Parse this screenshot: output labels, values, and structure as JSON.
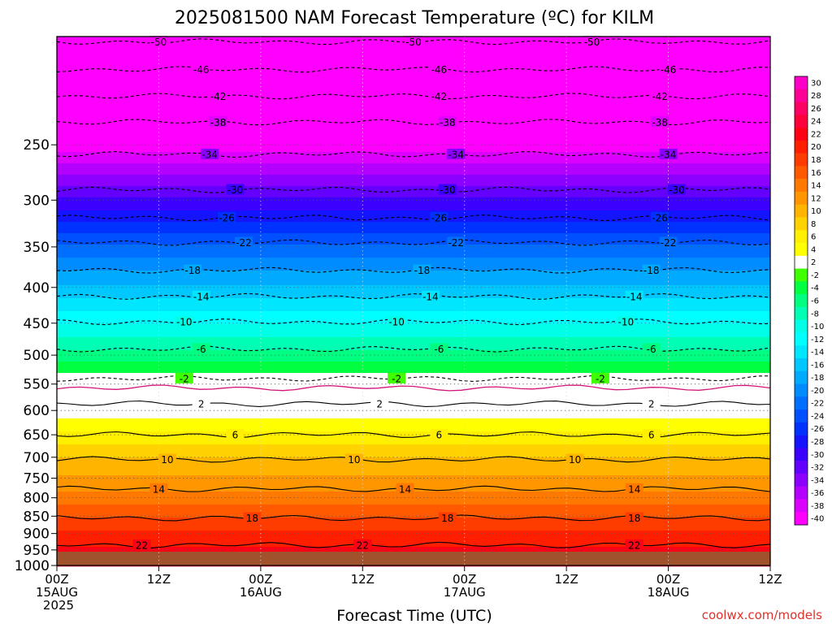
{
  "title": "2025081500 NAM Forecast Temperature (ºC) for KILM",
  "credit": "coolwx.com/models",
  "credit_color": "#e0302a",
  "chart_data": {
    "type": "heatmap",
    "title": "2025081500 NAM Forecast Temperature (ºC) for KILM",
    "xlabel": "Forecast Time (UTC)",
    "ylabel": "",
    "x_ticks": [
      {
        "hour": 0,
        "lines": [
          "00Z",
          "15AUG",
          "2025"
        ]
      },
      {
        "hour": 12,
        "lines": [
          "12Z"
        ]
      },
      {
        "hour": 24,
        "lines": [
          "00Z",
          "16AUG"
        ]
      },
      {
        "hour": 36,
        "lines": [
          "12Z"
        ]
      },
      {
        "hour": 48,
        "lines": [
          "00Z",
          "17AUG"
        ]
      },
      {
        "hour": 60,
        "lines": [
          "12Z"
        ]
      },
      {
        "hour": 72,
        "lines": [
          "00Z",
          "18AUG"
        ]
      },
      {
        "hour": 84,
        "lines": [
          "12Z"
        ]
      }
    ],
    "xlim_hours": [
      0,
      84
    ],
    "y_scale": "log-pressure",
    "y_ticks": [
      250,
      300,
      350,
      400,
      450,
      500,
      550,
      600,
      650,
      700,
      750,
      800,
      850,
      900,
      950,
      1000
    ],
    "ylim_hPa": [
      1000,
      175
    ],
    "surface_band_color": "#a0522d",
    "colorbar": {
      "levels": [
        "30",
        "28",
        "26",
        "24",
        "22",
        "20",
        "18",
        "16",
        "14",
        "12",
        "10",
        "8",
        "6",
        "4",
        "2",
        "-2",
        "-4",
        "-6",
        "-8",
        "-10",
        "-12",
        "-14",
        "-16",
        "-18",
        "-20",
        "-22",
        "-24",
        "-26",
        "-28",
        "-30",
        "-32",
        "-34",
        "-36",
        "-38",
        "-40"
      ],
      "colors": [
        "#ff00c8",
        "#ff0096",
        "#ff0064",
        "#ff003c",
        "#ff0014",
        "#ff1e00",
        "#ff3c00",
        "#ff5a00",
        "#ff7800",
        "#ff9600",
        "#ffb400",
        "#ffd200",
        "#fff000",
        "#ffff00",
        "#ffffff",
        "#40ff00",
        "#00ff40",
        "#00ff80",
        "#00ffb4",
        "#00ffe6",
        "#00ffff",
        "#00e6ff",
        "#00c8ff",
        "#00aaff",
        "#008cff",
        "#006eff",
        "#0050ff",
        "#0032ff",
        "#1414ff",
        "#3c00ff",
        "#6400ff",
        "#8c00ff",
        "#b400ff",
        "#dc00ff",
        "#ff00ff"
      ]
    },
    "temperature_profile": [
      {
        "p": 1000,
        "t": 26
      },
      {
        "p": 950,
        "t": 22.5
      },
      {
        "p": 900,
        "t": 20.5
      },
      {
        "p": 850,
        "t": 18
      },
      {
        "p": 800,
        "t": 15
      },
      {
        "p": 750,
        "t": 12.5
      },
      {
        "p": 700,
        "t": 10
      },
      {
        "p": 650,
        "t": 6.5
      },
      {
        "p": 600,
        "t": 3
      },
      {
        "p": 550,
        "t": 0
      },
      {
        "p": 500,
        "t": -5
      },
      {
        "p": 450,
        "t": -10
      },
      {
        "p": 400,
        "t": -15.5
      },
      {
        "p": 350,
        "t": -21.5
      },
      {
        "p": 300,
        "t": -29.5
      },
      {
        "p": 250,
        "t": -39
      },
      {
        "p": 200,
        "t": -49
      },
      {
        "p": 175,
        "t": -52
      }
    ],
    "contours": [
      {
        "value": -50,
        "dashed": true,
        "p": 178,
        "labels": [
          [
            12,
            "-50"
          ],
          [
            42,
            "-50"
          ],
          [
            63,
            "-50"
          ]
        ]
      },
      {
        "value": -46,
        "dashed": true,
        "p": 195,
        "labels": [
          [
            17,
            "-46"
          ],
          [
            45,
            "-46"
          ],
          [
            72,
            "-46"
          ]
        ]
      },
      {
        "value": -42,
        "dashed": true,
        "p": 213,
        "labels": [
          [
            19,
            "-42"
          ],
          [
            45,
            "-42"
          ],
          [
            71,
            "-42"
          ]
        ]
      },
      {
        "value": -38,
        "dashed": true,
        "p": 232,
        "labels": [
          [
            19,
            "-38"
          ],
          [
            46,
            "-38"
          ],
          [
            71,
            "-38"
          ]
        ]
      },
      {
        "value": -34,
        "dashed": true,
        "p": 258,
        "labels": [
          [
            18,
            "-34"
          ],
          [
            47,
            "-34"
          ],
          [
            72,
            "-34"
          ]
        ]
      },
      {
        "value": -30,
        "dashed": true,
        "p": 290,
        "labels": [
          [
            21,
            "-30"
          ],
          [
            46,
            "-30"
          ],
          [
            73,
            "-30"
          ]
        ]
      },
      {
        "value": -26,
        "dashed": true,
        "p": 318,
        "labels": [
          [
            20,
            "-26"
          ],
          [
            45,
            "-26"
          ],
          [
            71,
            "-26"
          ]
        ]
      },
      {
        "value": -22,
        "dashed": true,
        "p": 345,
        "labels": [
          [
            22,
            "-22"
          ],
          [
            47,
            "-22"
          ],
          [
            72,
            "-22"
          ]
        ]
      },
      {
        "value": -18,
        "dashed": true,
        "p": 378,
        "labels": [
          [
            16,
            "-18"
          ],
          [
            43,
            "-18"
          ],
          [
            70,
            "-18"
          ]
        ]
      },
      {
        "value": -14,
        "dashed": true,
        "p": 412,
        "labels": [
          [
            17,
            "-14"
          ],
          [
            44,
            "-14"
          ],
          [
            68,
            "-14"
          ]
        ]
      },
      {
        "value": -10,
        "dashed": true,
        "p": 448,
        "labels": [
          [
            15,
            "-10"
          ],
          [
            40,
            "-10"
          ],
          [
            67,
            "-10"
          ]
        ]
      },
      {
        "value": -6,
        "dashed": true,
        "p": 490,
        "labels": [
          [
            17,
            "-6"
          ],
          [
            45,
            "-6"
          ],
          [
            70,
            "-6"
          ]
        ]
      },
      {
        "value": -2,
        "dashed": true,
        "p": 540,
        "labels": [
          [
            15,
            "-2"
          ],
          [
            40,
            "-2"
          ],
          [
            64,
            "-2"
          ]
        ]
      },
      {
        "value": 0,
        "dashed": false,
        "zero": true,
        "p": 557,
        "labels": []
      },
      {
        "value": 2,
        "dashed": false,
        "p": 587,
        "labels": [
          [
            17,
            "2"
          ],
          [
            38,
            "2"
          ],
          [
            70,
            "2"
          ]
        ]
      },
      {
        "value": 6,
        "dashed": false,
        "p": 650,
        "labels": [
          [
            21,
            "6"
          ],
          [
            45,
            "6"
          ],
          [
            70,
            "6"
          ]
        ]
      },
      {
        "value": 10,
        "dashed": false,
        "p": 705,
        "labels": [
          [
            13,
            "10"
          ],
          [
            35,
            "10"
          ],
          [
            61,
            "10"
          ]
        ]
      },
      {
        "value": 14,
        "dashed": false,
        "p": 777,
        "labels": [
          [
            12,
            "14"
          ],
          [
            41,
            "14"
          ],
          [
            68,
            "14"
          ]
        ]
      },
      {
        "value": 18,
        "dashed": false,
        "p": 855,
        "labels": [
          [
            23,
            "18"
          ],
          [
            46,
            "18"
          ],
          [
            68,
            "18"
          ]
        ]
      },
      {
        "value": 22,
        "dashed": false,
        "p": 935,
        "labels": [
          [
            10,
            "22"
          ],
          [
            36,
            "22"
          ],
          [
            68,
            "22"
          ]
        ]
      }
    ]
  }
}
